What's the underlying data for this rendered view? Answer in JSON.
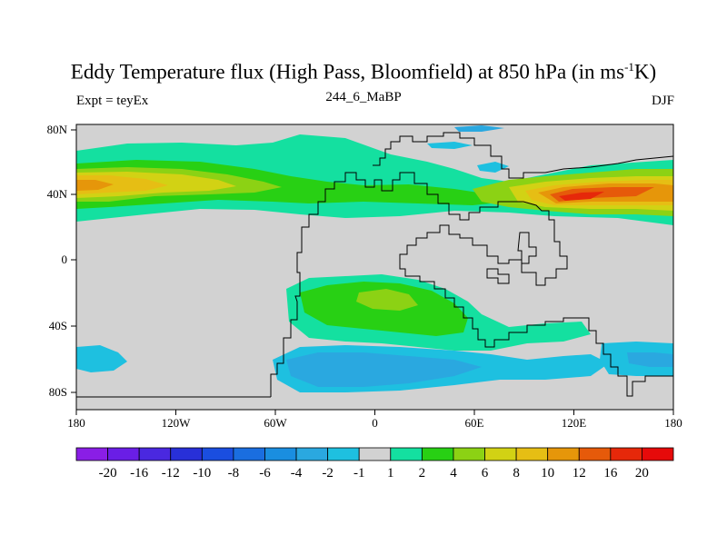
{
  "title": {
    "main": "Eddy Temperature flux (High Pass, Bloomfield) at 850 hPa (in ms",
    "sup": "-1",
    "end": "K)"
  },
  "left_label": "Expt = teyEx",
  "center_label": "244_6_MaBP",
  "right_label": "DJF",
  "axes": {
    "x_ticks": [
      "180",
      "120W",
      "60W",
      "0",
      "60E",
      "120E",
      "180"
    ],
    "y_ticks": [
      "80N",
      "40N",
      "0",
      "40S",
      "80S"
    ]
  },
  "colorbar": {
    "labels": [
      "-20",
      "-16",
      "-12",
      "-10",
      "-8",
      "-6",
      "-4",
      "-2",
      "-1",
      "1",
      "2",
      "4",
      "6",
      "8",
      "10",
      "12",
      "16",
      "20"
    ],
    "colors": [
      "#8a1ee6",
      "#6a1ee6",
      "#4a28e0",
      "#2830d8",
      "#1a4ee0",
      "#1a6ee0",
      "#1a8ee0",
      "#2aa8e0",
      "#1ec0e0",
      "#d2d2d2",
      "#14e0a0",
      "#28d014",
      "#8cd214",
      "#d2d214",
      "#e6be14",
      "#e6960a",
      "#e65a0a",
      "#e6280a",
      "#e60a0a"
    ]
  },
  "map_colors": {
    "background": "#d2d2d2",
    "coast": "#000000"
  }
}
